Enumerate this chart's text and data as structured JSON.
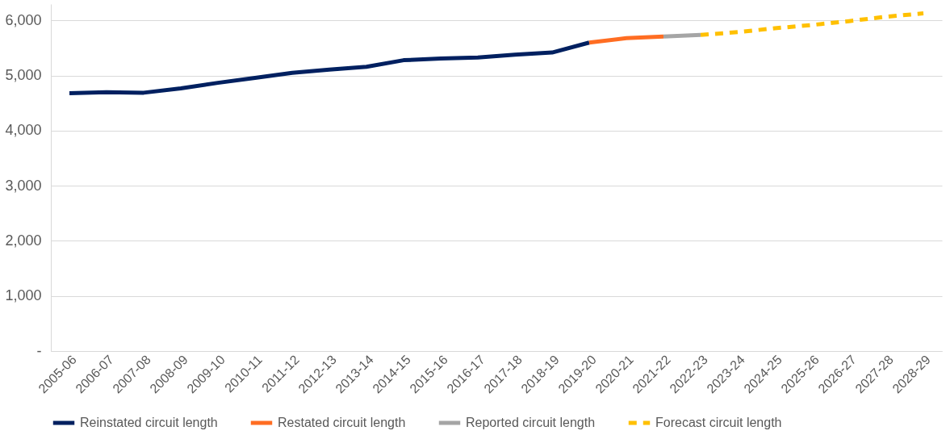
{
  "chart_data": {
    "type": "line",
    "categories": [
      "2005-06",
      "2006-07",
      "2007-08",
      "2008-09",
      "2009-10",
      "2010-11",
      "2011-12",
      "2012-13",
      "2013-14",
      "2014-15",
      "2015-16",
      "2016-17",
      "2017-18",
      "2018-19",
      "2019-20",
      "2020-21",
      "2021-22",
      "2022-23",
      "2023-24",
      "2024-25",
      "2025-26",
      "2026-27",
      "2027-28",
      "2028-29"
    ],
    "series": [
      {
        "name": "Reinstated circuit length",
        "color": "#002060",
        "line_style": "solid",
        "values": [
          4680,
          4700,
          4690,
          4770,
          4870,
          4960,
          5050,
          5110,
          5160,
          5280,
          5310,
          5330,
          5380,
          5420,
          5600,
          null,
          null,
          null,
          null,
          null,
          null,
          null,
          null,
          null
        ]
      },
      {
        "name": "Restated circuit length",
        "color": "#ff6d22",
        "line_style": "solid",
        "values": [
          null,
          null,
          null,
          null,
          null,
          null,
          null,
          null,
          null,
          null,
          null,
          null,
          null,
          null,
          5600,
          5680,
          5710,
          null,
          null,
          null,
          null,
          null,
          null,
          null
        ]
      },
      {
        "name": "Reported circuit length",
        "color": "#a5a5a5",
        "line_style": "solid",
        "values": [
          null,
          null,
          null,
          null,
          null,
          null,
          null,
          null,
          null,
          null,
          null,
          null,
          null,
          null,
          null,
          null,
          5710,
          5740,
          null,
          null,
          null,
          null,
          null,
          null
        ]
      },
      {
        "name": "Forecast circuit length",
        "color": "#ffc000",
        "line_style": "dashed",
        "values": [
          null,
          null,
          null,
          null,
          null,
          null,
          null,
          null,
          null,
          null,
          null,
          null,
          null,
          null,
          null,
          null,
          null,
          5740,
          5790,
          5860,
          5920,
          5990,
          6070,
          6130
        ]
      }
    ],
    "ylim": [
      0,
      6300
    ],
    "yticks": [
      {
        "value": 0,
        "label": "-"
      },
      {
        "value": 1000,
        "label": "1,000"
      },
      {
        "value": 2000,
        "label": "2,000"
      },
      {
        "value": 3000,
        "label": "3,000"
      },
      {
        "value": 4000,
        "label": "4,000"
      },
      {
        "value": 5000,
        "label": "5,000"
      },
      {
        "value": 6000,
        "label": "6,000"
      }
    ],
    "grid": "y",
    "legend": "bottom"
  }
}
